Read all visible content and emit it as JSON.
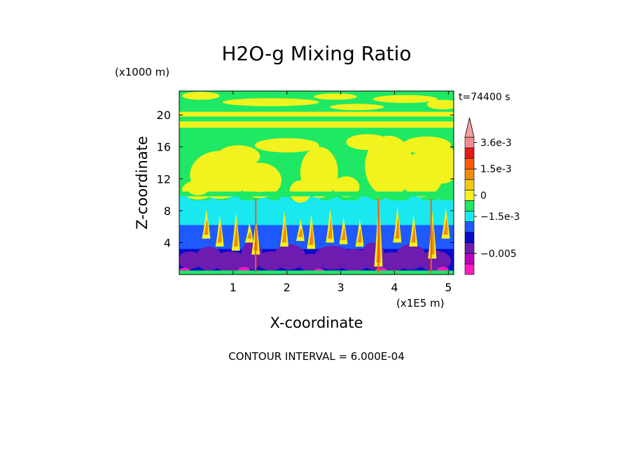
{
  "chart_data": {
    "type": "heatmap",
    "title": "H2O-g Mixing Ratio",
    "xlabel": "X-coordinate",
    "ylabel": "Z-coordinate",
    "x_scale_note": "(x1E5 m)",
    "y_scale_note": "(x1000 m)",
    "time_label": "t=74400 s",
    "footer": "CONTOUR INTERVAL = 6.000E-04",
    "xlim": [
      0,
      5.1
    ],
    "ylim": [
      0,
      23
    ],
    "x_ticks": [
      1,
      2,
      3,
      4,
      5
    ],
    "x_tick_labels": [
      "1",
      "2",
      "3",
      "4",
      "5"
    ],
    "y_ticks": [
      4,
      8,
      12,
      16,
      20
    ],
    "y_tick_labels": [
      "4",
      "8",
      "12",
      "16",
      "20"
    ],
    "colorbar": {
      "colors": [
        "#ff19c3",
        "#c000c0",
        "#6e1bb0",
        "#0a0acd",
        "#1e5aff",
        "#19e8f0",
        "#1ee864",
        "#f2f21e",
        "#f2c814",
        "#f08c0a",
        "#ff5a0a",
        "#e61919",
        "#f28c8c"
      ],
      "tick_labels": [
        "3.6e-3",
        "1.5e-3",
        "0",
        "−1.5e-3",
        "−0.005"
      ],
      "tick_values": [
        0.0036,
        0.0015,
        0,
        -0.0015,
        -0.005
      ],
      "extend": "max"
    },
    "bands": [
      {
        "z": [
          0,
          1
        ],
        "level": "dark-blue"
      },
      {
        "z": [
          1,
          2.5
        ],
        "level": "purple"
      },
      {
        "z": [
          2.5,
          6
        ],
        "level": "blue"
      },
      {
        "z": [
          6,
          9
        ],
        "level": "cyan"
      },
      {
        "z": [
          9,
          19
        ],
        "level": "green-yellow"
      },
      {
        "z": [
          19,
          23
        ],
        "level": "yellow-green"
      }
    ]
  }
}
